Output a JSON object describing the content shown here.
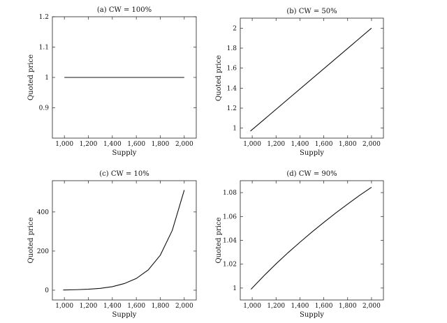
{
  "chart_data": [
    {
      "type": "line",
      "title": "(a) CW = 100%",
      "xlabel": "Supply",
      "ylabel": "Quoted price",
      "xlim": [
        900,
        2100
      ],
      "ylim": [
        0.8,
        1.2
      ],
      "x_ticks": [
        1000,
        1200,
        1400,
        1600,
        1800,
        2000
      ],
      "x_tick_labels": [
        "1,000",
        "1,200",
        "1,400",
        "1,600",
        "1,800",
        "2,000"
      ],
      "y_ticks": [
        0.9,
        1,
        1.1,
        1.2
      ],
      "y_tick_labels": [
        "0.9",
        "1",
        "1.1",
        "1.2"
      ],
      "grid": false,
      "series": [
        {
          "x": [
            1000,
            2000
          ],
          "y": [
            1,
            1
          ]
        }
      ]
    },
    {
      "type": "line",
      "title": "(b) CW = 50%",
      "xlabel": "Supply",
      "ylabel": "Quoted price",
      "xlim": [
        900,
        2100
      ],
      "ylim": [
        0.9,
        2.1
      ],
      "x_ticks": [
        1000,
        1200,
        1400,
        1600,
        1800,
        2000
      ],
      "x_tick_labels": [
        "1,000",
        "1,200",
        "1,400",
        "1,600",
        "1,800",
        "2,000"
      ],
      "y_ticks": [
        1,
        1.2,
        1.4,
        1.6,
        1.8,
        2
      ],
      "y_tick_labels": [
        "1",
        "1.2",
        "1.4",
        "1.6",
        "1.8",
        "2"
      ],
      "grid": false,
      "series": [
        {
          "x": [
            985,
            2000
          ],
          "y": [
            0.97,
            2.0
          ]
        }
      ]
    },
    {
      "type": "line",
      "title": "(c) CW = 10%",
      "xlabel": "Supply",
      "ylabel": "Quoted price",
      "xlim": [
        900,
        2100
      ],
      "ylim": [
        -50,
        560
      ],
      "x_ticks": [
        1000,
        1200,
        1400,
        1600,
        1800,
        2000
      ],
      "x_tick_labels": [
        "1,000",
        "1,200",
        "1,400",
        "1,600",
        "1,800",
        "2,000"
      ],
      "y_ticks": [
        0,
        200,
        400
      ],
      "y_tick_labels": [
        "0",
        "200",
        "400"
      ],
      "grid": false,
      "series": [
        {
          "x": [
            990,
            1100,
            1200,
            1300,
            1400,
            1500,
            1600,
            1700,
            1800,
            1900,
            2000
          ],
          "y": [
            1,
            2.6,
            5,
            9.6,
            18,
            34,
            60,
            104,
            179,
            306,
            512
          ]
        }
      ]
    },
    {
      "type": "line",
      "title": "(d) CW = 90%",
      "xlabel": "Supply",
      "ylabel": "Quoted price",
      "xlim": [
        900,
        2100
      ],
      "ylim": [
        0.99,
        1.09
      ],
      "x_ticks": [
        1000,
        1200,
        1400,
        1600,
        1800,
        2000
      ],
      "x_tick_labels": [
        "1,000",
        "1,200",
        "1,400",
        "1,600",
        "1,800",
        "2,000"
      ],
      "y_ticks": [
        1,
        1.02,
        1.04,
        1.06,
        1.08
      ],
      "y_tick_labels": [
        "1",
        "1.02",
        "1.04",
        "1.06",
        "1.08"
      ],
      "grid": false,
      "series": [
        {
          "x": [
            990,
            1100,
            1200,
            1300,
            1400,
            1500,
            1600,
            1700,
            1800,
            1900,
            2000
          ],
          "y": [
            0.999,
            1.0105,
            1.0203,
            1.0296,
            1.0384,
            1.0469,
            1.055,
            1.0629,
            1.0704,
            1.0777,
            1.0845
          ]
        }
      ]
    }
  ]
}
